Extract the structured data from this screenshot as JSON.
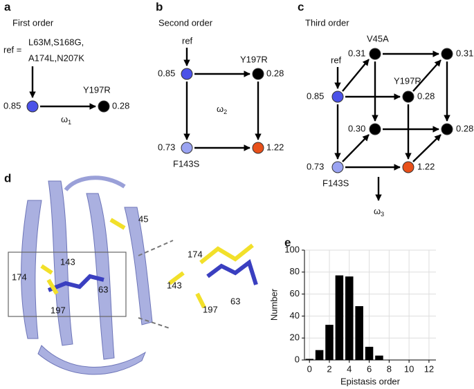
{
  "panels": {
    "a": {
      "label": "a",
      "title": "First order",
      "ref_prefix": "ref =",
      "ref_line1": "L63M,S168G,",
      "ref_line2": "A174L,N207K",
      "nodes": [
        {
          "value": "0.85"
        },
        {
          "value": "0.28",
          "label": "Y197R"
        }
      ],
      "omega": {
        "symbol": "ω",
        "subscript": "1"
      }
    },
    "b": {
      "label": "b",
      "title": "Second order",
      "ref": "ref",
      "nodes": [
        {
          "value": "0.85"
        },
        {
          "value": "0.28",
          "label": "Y197R"
        },
        {
          "value": "0.73",
          "label": "F143S"
        },
        {
          "value": "1.22"
        }
      ],
      "omega": {
        "symbol": "ω",
        "subscript": "2"
      }
    },
    "c": {
      "label": "c",
      "title": "Third order",
      "ref": "ref",
      "nodes": [
        {
          "value": "0.85"
        },
        {
          "value": "0.31",
          "label": "V45A"
        },
        {
          "value": "0.31"
        },
        {
          "value": "0.28",
          "label": "Y197R"
        },
        {
          "value": "0.30"
        },
        {
          "value": "0.28"
        },
        {
          "value": "0.73",
          "label": "F143S"
        },
        {
          "value": "1.22"
        }
      ],
      "omega": {
        "symbol": "ω",
        "subscript": "3"
      }
    },
    "d": {
      "label": "d",
      "residues": [
        "45",
        "143",
        "174",
        "63",
        "197"
      ],
      "inset_residues": [
        "174",
        "143",
        "197",
        "63"
      ]
    }
  },
  "chart_data": {
    "type": "bar",
    "label": "e",
    "x": [
      0,
      1,
      2,
      3,
      4,
      5,
      6,
      7
    ],
    "values": [
      1,
      9,
      32,
      77,
      76,
      49,
      12,
      4
    ],
    "color": "#000000",
    "xlim": [
      -0.5,
      12.7
    ],
    "xticks": [
      0,
      2,
      4,
      6,
      8,
      10,
      12
    ],
    "ylim": [
      0,
      100
    ],
    "yticks": [
      0,
      20,
      40,
      60,
      80,
      100
    ],
    "grid": true,
    "xlabel": "Epistasis order",
    "ylabel": "Number"
  }
}
